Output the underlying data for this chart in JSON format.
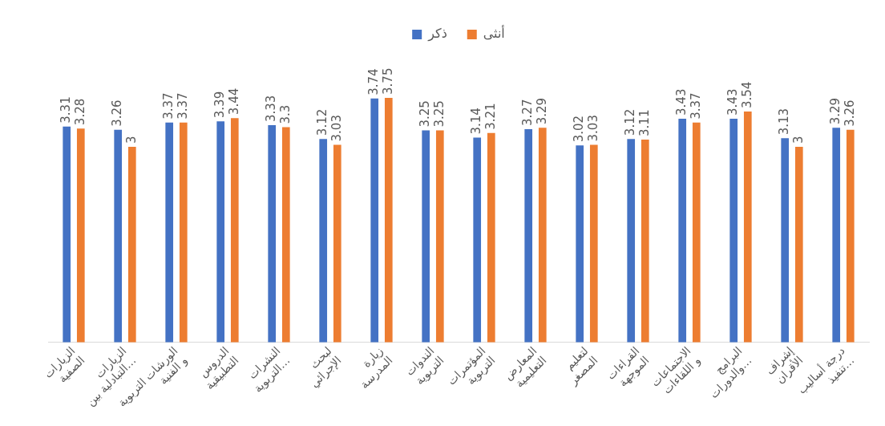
{
  "chart_data": {
    "type": "bar",
    "categories": [
      "الزيارات الصفية",
      "الزيارات التبادلية بين…",
      "الورشات التربوية و الفنية",
      "الدروس التطبيقية",
      "النشرات التربوية…",
      "لبحث الإجرائي",
      "زيارة المدرسة",
      "الندوات التربوية",
      "المؤتمرات التربوية",
      "المعارض التعليمية",
      "لتعليم المصغر",
      "القراءات الموجهة",
      "الاجتماعات و اللقاءات",
      "البرامج والدورات…",
      "إشراف الأقران",
      "درجة أساليب تنفيذ…"
    ],
    "series": [
      {
        "name": "ذكر",
        "color": "#4472c4",
        "values": [
          3.31,
          3.26,
          3.37,
          3.39,
          3.33,
          3.12,
          3.74,
          3.25,
          3.14,
          3.27,
          3.02,
          3.12,
          3.43,
          3.43,
          3.13,
          3.29
        ]
      },
      {
        "name": "أنثى",
        "color": "#ed7d31",
        "values": [
          3.28,
          3,
          3.37,
          3.44,
          3.3,
          3.03,
          3.75,
          3.25,
          3.21,
          3.29,
          3.03,
          3.11,
          3.37,
          3.54,
          3,
          3.26
        ]
      }
    ],
    "tick_labels": "x",
    "grid": false,
    "legend": "top",
    "data_labels": true
  }
}
